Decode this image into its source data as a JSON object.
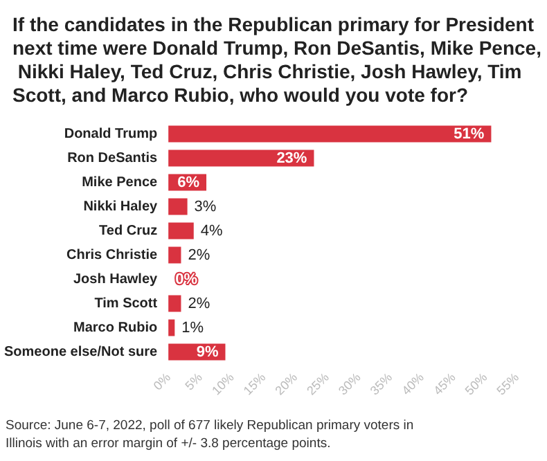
{
  "chart_data": {
    "type": "bar",
    "orientation": "horizontal",
    "title": "If the candidates in the Republican primary for President next time were Donald Trump, Ron DeSantis, Mike Pence, Nikki Haley, Ted Cruz, Chris Christie, Josh Hawley, Tim Scott, and Marco Rubio, who would you vote for?",
    "categories": [
      "Donald Trump",
      "Ron DeSantis",
      "Mike Pence",
      "Nikki Haley",
      "Ted Cruz",
      "Chris Christie",
      "Josh Hawley",
      "Tim Scott",
      "Marco Rubio",
      "Someone else/Not sure"
    ],
    "values": [
      51,
      23,
      6,
      3,
      4,
      2,
      0,
      2,
      1,
      9
    ],
    "color": "#d93340",
    "value_labels": [
      "51%",
      "23%",
      "6%",
      "3%",
      "4%",
      "2%",
      "0%",
      "2%",
      "1%",
      "9%"
    ],
    "xlim": [
      0,
      55
    ],
    "xticks": [
      {
        "value": 0,
        "label": "0%"
      },
      {
        "value": 5,
        "label": "5%"
      },
      {
        "value": 10,
        "label": "10%"
      },
      {
        "value": 15,
        "label": "15%"
      },
      {
        "value": 20,
        "label": "20%"
      },
      {
        "value": 25,
        "label": "25%"
      },
      {
        "value": 30,
        "label": "30%"
      },
      {
        "value": 35,
        "label": "35%"
      },
      {
        "value": 40,
        "label": "40%"
      },
      {
        "value": 45,
        "label": "45%"
      },
      {
        "value": 50,
        "label": "50%"
      },
      {
        "value": 55,
        "label": "55%"
      }
    ],
    "grid": false,
    "annotations": [
      "Source: June 6-7, 2022, poll of 677 likely Republican primary voters in Illinois with an error margin of +/- 3.8 percentage points."
    ]
  }
}
